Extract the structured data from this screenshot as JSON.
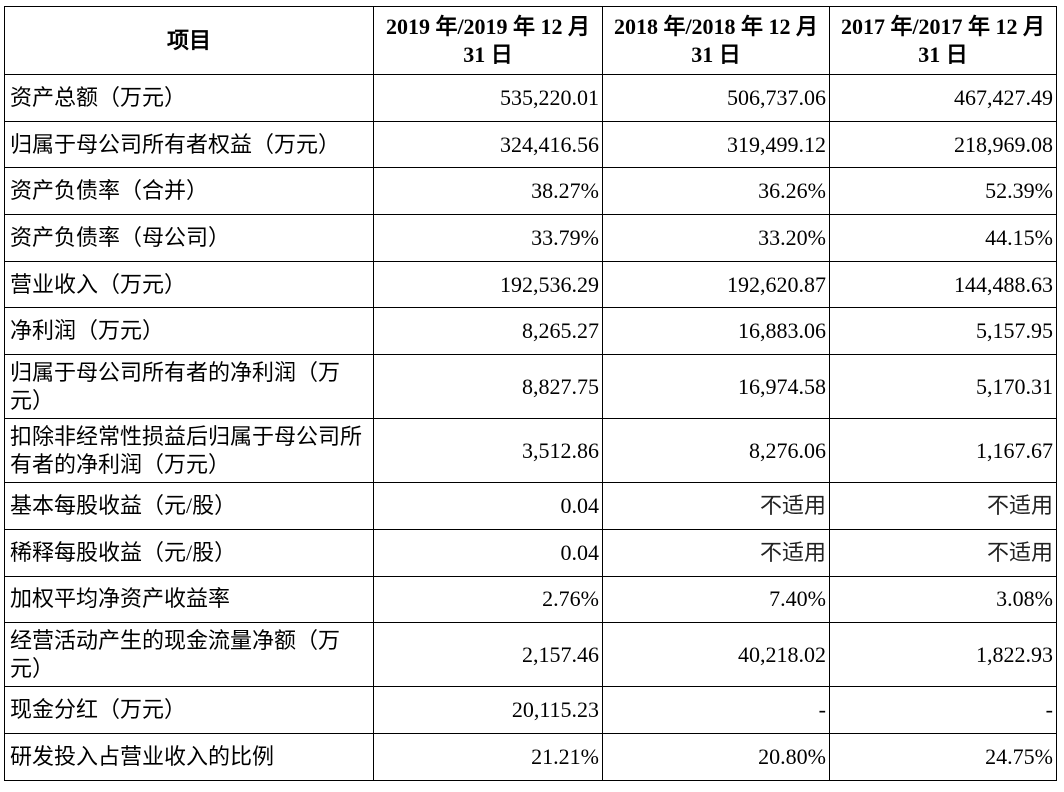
{
  "table": {
    "headers": [
      "项目",
      "2019 年/2019 年 12 月 31 日",
      "2018 年/2018 年 12 月 31 日",
      "2017 年/2017 年 12 月 31 日"
    ],
    "rows": [
      {
        "label": "资产总额（万元）",
        "values": [
          "535,220.01",
          "506,737.06",
          "467,427.49"
        ]
      },
      {
        "label": "归属于母公司所有者权益（万元）",
        "values": [
          "324,416.56",
          "319,499.12",
          "218,969.08"
        ]
      },
      {
        "label": "资产负债率（合并）",
        "values": [
          "38.27%",
          "36.26%",
          "52.39%"
        ]
      },
      {
        "label": "资产负债率（母公司）",
        "values": [
          "33.79%",
          "33.20%",
          "44.15%"
        ]
      },
      {
        "label": "营业收入（万元）",
        "values": [
          "192,536.29",
          "192,620.87",
          "144,488.63"
        ]
      },
      {
        "label": "净利润（万元）",
        "values": [
          "8,265.27",
          "16,883.06",
          "5,157.95"
        ]
      },
      {
        "label": "归属于母公司所有者的净利润（万元）",
        "values": [
          "8,827.75",
          "16,974.58",
          "5,170.31"
        ]
      },
      {
        "label": "扣除非经常性损益后归属于母公司所有者的净利润（万元）",
        "values": [
          "3,512.86",
          "8,276.06",
          "1,167.67"
        ]
      },
      {
        "label": "基本每股收益（元/股）",
        "values": [
          "0.04",
          "不适用",
          "不适用"
        ]
      },
      {
        "label": "稀释每股收益（元/股）",
        "values": [
          "0.04",
          "不适用",
          "不适用"
        ]
      },
      {
        "label": "加权平均净资产收益率",
        "values": [
          "2.76%",
          "7.40%",
          "3.08%"
        ]
      },
      {
        "label": "经营活动产生的现金流量净额（万元）",
        "values": [
          "2,157.46",
          "40,218.02",
          "1,822.93"
        ]
      },
      {
        "label": "现金分红（万元）",
        "values": [
          "20,115.23",
          "-",
          "-"
        ]
      },
      {
        "label": "研发投入占营业收入的比例",
        "values": [
          "21.21%",
          "20.80%",
          "24.75%"
        ]
      }
    ]
  }
}
